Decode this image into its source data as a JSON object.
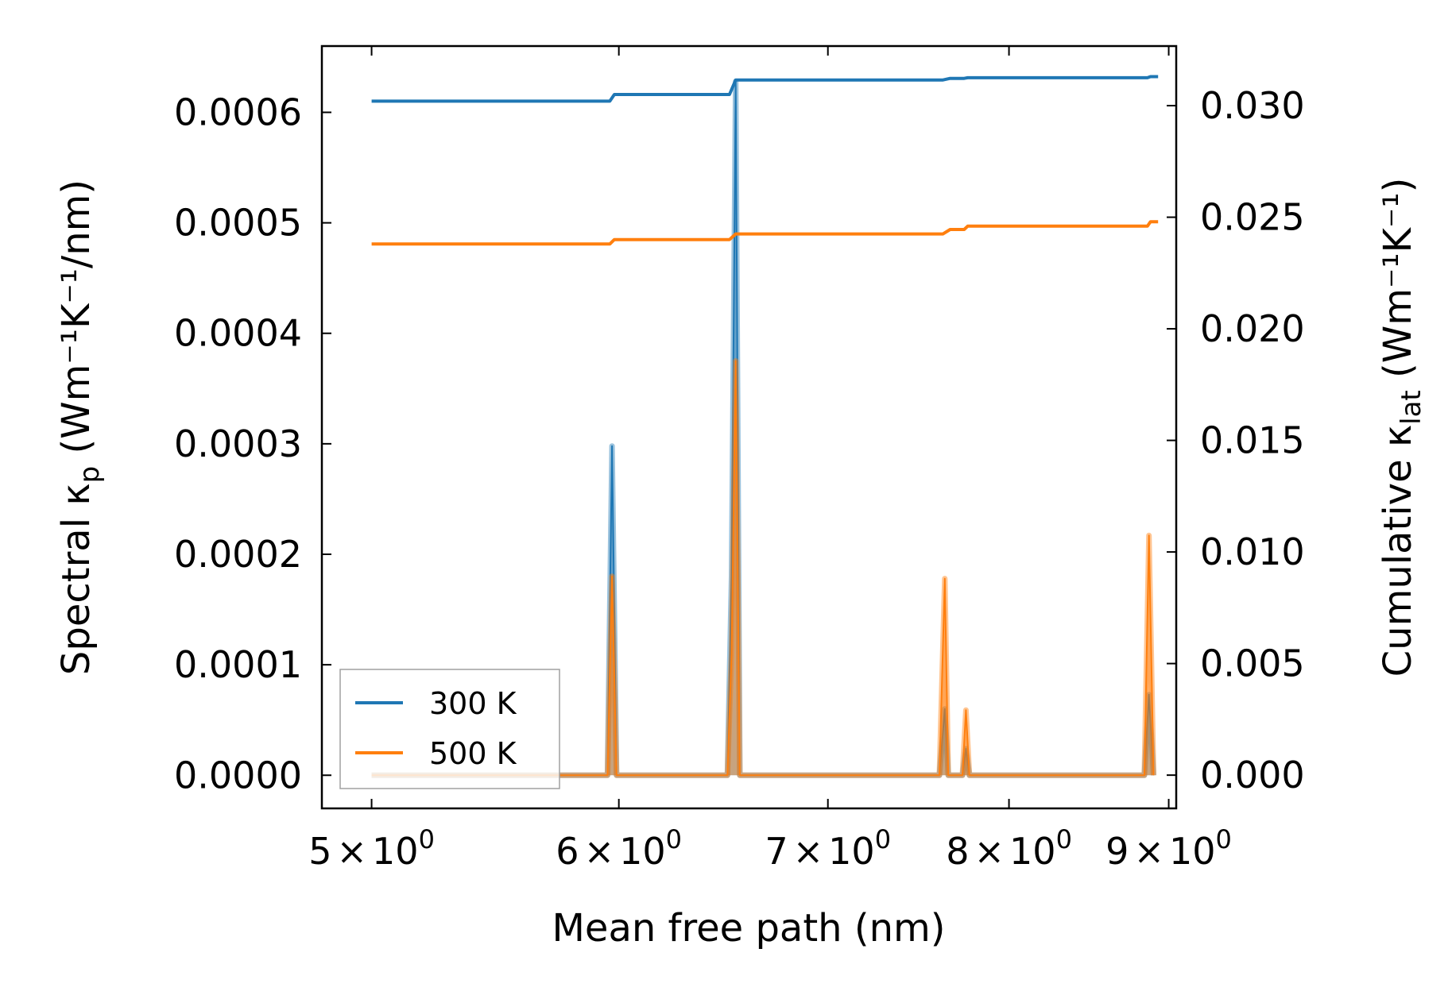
{
  "chart_data": {
    "type": "line",
    "xscale": "log",
    "xlabel": "Mean free path (nm)",
    "ylabel_left": {
      "prefix": "Spectral κ",
      "sub": "p",
      "unit": " (Wm⁻¹K⁻¹/nm)"
    },
    "ylabel_right": {
      "prefix": "Cumulative κ",
      "sub": "lat",
      "unit": " (Wm⁻¹K⁻¹)"
    },
    "xlim": [
      4.82,
      9.05
    ],
    "ylim_left": [
      -3e-05,
      0.00066
    ],
    "ylim_right": [
      -0.00149,
      0.03267
    ],
    "x_ticks": [
      {
        "value": 5,
        "mantissa": "5",
        "times": "×",
        "base": "10",
        "exp": "0"
      },
      {
        "value": 6,
        "mantissa": "6",
        "times": "×",
        "base": "10",
        "exp": "0"
      },
      {
        "value": 7,
        "mantissa": "7",
        "times": "×",
        "base": "10",
        "exp": "0"
      },
      {
        "value": 8,
        "mantissa": "8",
        "times": "×",
        "base": "10",
        "exp": "0"
      },
      {
        "value": 9,
        "mantissa": "9",
        "times": "×",
        "base": "10",
        "exp": "0"
      }
    ],
    "y_ticks_left": [
      {
        "value": 0.0,
        "label": "0.0000"
      },
      {
        "value": 0.0001,
        "label": "0.0001"
      },
      {
        "value": 0.0002,
        "label": "0.0002"
      },
      {
        "value": 0.0003,
        "label": "0.0003"
      },
      {
        "value": 0.0004,
        "label": "0.0004"
      },
      {
        "value": 0.0005,
        "label": "0.0005"
      },
      {
        "value": 0.0006,
        "label": "0.0006"
      }
    ],
    "y_ticks_right": [
      {
        "value": 0.0,
        "label": "0.000"
      },
      {
        "value": 0.005,
        "label": "0.005"
      },
      {
        "value": 0.01,
        "label": "0.010"
      },
      {
        "value": 0.015,
        "label": "0.015"
      },
      {
        "value": 0.02,
        "label": "0.020"
      },
      {
        "value": 0.025,
        "label": "0.025"
      },
      {
        "value": 0.03,
        "label": "0.030"
      }
    ],
    "series": [
      {
        "name": "300 K",
        "color": "#1f77b4",
        "spectral": {
          "x": [
            5.0,
            5.95,
            5.97,
            5.99,
            6.5,
            6.52,
            6.54,
            6.56,
            7.6,
            7.63,
            7.65,
            7.73,
            7.75,
            7.77,
            8.84,
            8.87,
            8.9
          ],
          "y": [
            0.0,
            0.0,
            0.000298,
            0.0,
            0.0,
            0.00018,
            0.000628,
            0.0,
            0.0,
            6e-05,
            0.0,
            0.0,
            2.4e-05,
            0.0,
            0.0,
            7.3e-05,
            0.0
          ]
        },
        "cumulative": {
          "x": [
            5.0,
            5.96,
            5.98,
            6.51,
            6.54,
            7.62,
            7.66,
            7.74,
            7.76,
            8.86,
            8.88,
            8.93
          ],
          "y": [
            0.0302,
            0.0302,
            0.0305,
            0.0305,
            0.03115,
            0.03115,
            0.03122,
            0.03122,
            0.03125,
            0.03125,
            0.0313,
            0.0313
          ]
        }
      },
      {
        "name": "500 K",
        "color": "#ff7f0e",
        "spectral": {
          "x": [
            5.0,
            5.95,
            5.97,
            5.99,
            6.5,
            6.52,
            6.54,
            6.56,
            7.6,
            7.63,
            7.65,
            7.73,
            7.75,
            7.77,
            8.84,
            8.87,
            8.9
          ],
          "y": [
            0.0,
            0.0,
            0.00018,
            0.0,
            0.0,
            0.00011,
            0.000375,
            0.0,
            0.0,
            0.000178,
            0.0,
            0.0,
            5.9e-05,
            0.0,
            0.0,
            0.000217,
            0.0
          ]
        },
        "cumulative": {
          "x": [
            5.0,
            5.96,
            5.98,
            6.51,
            6.54,
            7.62,
            7.66,
            7.74,
            7.76,
            8.86,
            8.88,
            8.93
          ],
          "y": [
            0.0238,
            0.0238,
            0.024,
            0.024,
            0.02425,
            0.02425,
            0.02445,
            0.02445,
            0.0246,
            0.0246,
            0.0248,
            0.0248
          ]
        }
      }
    ],
    "legend": {
      "location": "lower-left",
      "entries": [
        "300 K",
        "500 K"
      ]
    }
  }
}
